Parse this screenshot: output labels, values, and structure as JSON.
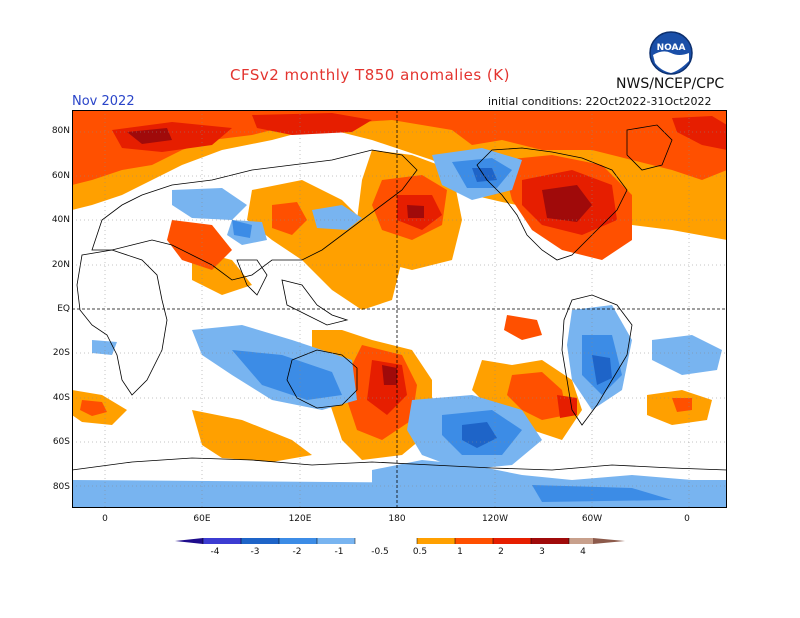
{
  "header": {
    "title": "CFSv2 monthly T850 anomalies (K)",
    "agency": "NWS/NCEP/CPC",
    "month": "Nov 2022",
    "initial_conditions": "initial conditions: 22Oct2022-31Oct2022",
    "logo_text": "NOAA"
  },
  "axes": {
    "lat_labels": [
      "80N",
      "60N",
      "40N",
      "20N",
      "EQ",
      "20S",
      "40S",
      "60S",
      "80S"
    ],
    "lon_labels": [
      "0",
      "60E",
      "120E",
      "180",
      "120W",
      "60W",
      "0"
    ]
  },
  "colorbar": {
    "labels": [
      "-4",
      "-3",
      "-2",
      "-1",
      "-0.5",
      "0.5",
      "1",
      "2",
      "3",
      "4"
    ],
    "colors": {
      "le_-4": "#1e0c8c",
      "-4_-3": "#3c3cd2",
      "-3_-2": "#1e64c8",
      "-2_-1": "#3c8ce6",
      "-1_-0.5": "#78b4f0",
      "-0.5_0.5": "#ffffff",
      "0.5_1": "#ffa000",
      "1_2": "#ff5000",
      "2_3": "#e61e00",
      "3_4": "#a00a0a",
      "ge_4": "#c8a08c",
      "ge_5": "#8c5a4b"
    }
  },
  "colors": {
    "title": "#e3342f",
    "month": "#2a45c9"
  }
}
